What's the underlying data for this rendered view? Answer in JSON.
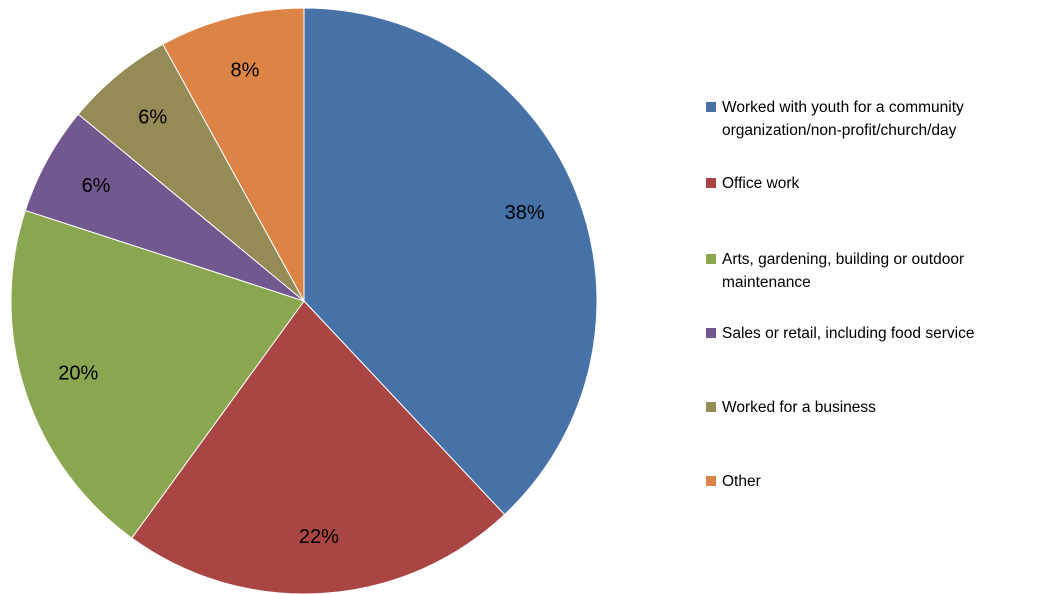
{
  "chart_data": {
    "type": "pie",
    "categories": [
      "Worked with youth for a community organization/non-profit/church/day",
      "Office work",
      "Arts, gardening, building or outdoor maintenance",
      "Sales or retail, including food service",
      "Worked for a business",
      "Other"
    ],
    "values": [
      38,
      22,
      20,
      6,
      6,
      8
    ],
    "value_labels": [
      "38%",
      "22%",
      "20%",
      "6%",
      "6%",
      "8%"
    ],
    "colors": [
      "#4672a8",
      "#a94644",
      "#8aa650",
      "#71588f",
      "#958b56",
      "#db8445"
    ],
    "legend": "right"
  }
}
